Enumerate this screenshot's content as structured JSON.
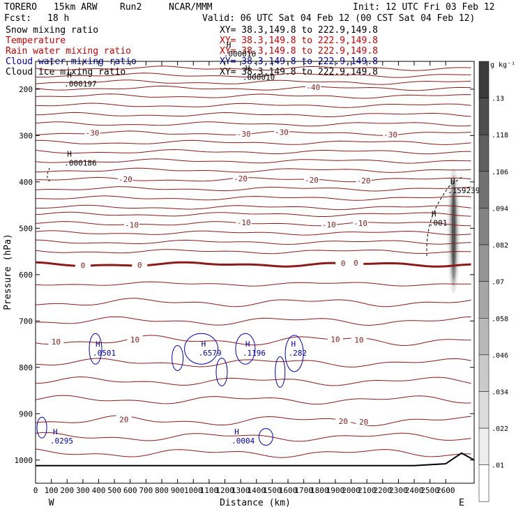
{
  "header": {
    "model": "TORERO",
    "resolution": "15km ARW",
    "run": "Run2",
    "org": "NCAR/MMM",
    "init": "Init: 12 UTC Fri 03 Feb 12",
    "fcst": "Fcst:",
    "fcst_hours": "18 h",
    "valid": "Valid: 06 UTC Sat 04 Feb 12 (00 CST Sat 04 Feb 12)"
  },
  "legend": [
    {
      "name": "Snow mixing ratio",
      "color": "#000000",
      "xy": "XY=  38.3,149.8 to 222.9,149.8"
    },
    {
      "name": "Temperature",
      "color": "#cc0000",
      "xy": "XY=  38.3,149.8 to 222.9,149.8"
    },
    {
      "name": "Rain water mixing ratio",
      "color": "#cc0000",
      "xy": "XY=  38.3,149.8 to 222.9,149.8"
    },
    {
      "name": "Cloud water mixing ratio",
      "color": "#0000aa",
      "xy": "XY=  38.3,149.8 to 222.9,149.8"
    },
    {
      "name": "Cloud ice mixing ratio",
      "color": "#000000",
      "xy": "XY=  38.3,149.8 to 222.9,149.8"
    }
  ],
  "colorbar": {
    "unit": "g kg⁻¹",
    "ticks": [
      ".13",
      ".118",
      ".106",
      ".094",
      ".082",
      ".07",
      ".058",
      ".046",
      ".034",
      ".022",
      ".01"
    ]
  },
  "chart_data": {
    "type": "contour",
    "xlabel": "Distance (km)",
    "ylabel": "Pressure (hPa)",
    "xlim": [
      0,
      2780
    ],
    "ylim": [
      140,
      1050
    ],
    "y_log_scale": false,
    "x_ticks": [
      "0",
      "100",
      "200",
      "300",
      "400",
      "500",
      "600",
      "700",
      "800",
      "900",
      "1000",
      "1100",
      "1200",
      "1300",
      "1400",
      "1500",
      "1600",
      "1700",
      "1800",
      "1900",
      "2000",
      "2100",
      "2200",
      "2300",
      "2400",
      "2500",
      "2600"
    ],
    "y_ticks": [
      "200",
      "300",
      "400",
      "500",
      "600",
      "700",
      "800",
      "900",
      "1000"
    ],
    "x_end_labels": {
      "left": "W",
      "right": "E"
    },
    "temperature_contours_C": [
      {
        "value": -40,
        "labels_at_km": [
          1760
        ]
      },
      {
        "value": -30,
        "labels_at_km": [
          360,
          1320,
          1560,
          2250
        ]
      },
      {
        "value": -20,
        "labels_at_km": [
          570,
          1300,
          1750,
          2080
        ]
      },
      {
        "value": -10,
        "labels_at_km": [
          610,
          1320,
          1860,
          2060
        ]
      },
      {
        "value": 0,
        "labels_at_km": [
          300,
          660,
          1950,
          2030
        ]
      },
      {
        "value": 10,
        "labels_at_km": [
          130,
          630,
          1900,
          2050
        ]
      },
      {
        "value": 20,
        "labels_at_km": [
          560,
          1950,
          2080
        ]
      }
    ],
    "maxima_labels": [
      {
        "text": ".000197",
        "color": "#000000",
        "x_km": 200,
        "p_hPa": 190
      },
      {
        "text": ".000010",
        "color": "#000000",
        "x_km": 1330,
        "p_hPa": 175
      },
      {
        "text": ".000016",
        "color": "#000000",
        "x_km": 1210,
        "p_hPa": 125
      },
      {
        "text": ".000186",
        "color": "#000000",
        "x_km": 200,
        "p_hPa": 360
      },
      {
        "text": ".159239",
        "color": "#000000",
        "x_km": 2630,
        "p_hPa": 420
      },
      {
        "text": ".001",
        "color": "#000000",
        "x_km": 2510,
        "p_hPa": 490
      },
      {
        "text": ".0501",
        "color": "#0000aa",
        "x_km": 380,
        "p_hPa": 770
      },
      {
        "text": ".6579",
        "color": "#0000aa",
        "x_km": 1050,
        "p_hPa": 770
      },
      {
        "text": ".1196",
        "color": "#0000aa",
        "x_km": 1330,
        "p_hPa": 770
      },
      {
        "text": ".282",
        "color": "#0000aa",
        "x_km": 1620,
        "p_hPa": 770
      },
      {
        "text": ".0295",
        "color": "#0000aa",
        "x_km": 110,
        "p_hPa": 960
      },
      {
        "text": ".0004",
        "color": "#0000aa",
        "x_km": 1260,
        "p_hPa": 960
      }
    ],
    "shaded_field": "Snow mixing ratio (g kg-1)",
    "shaded_max_at": {
      "x_km": 2650,
      "p_range_hPa": [
        430,
        580
      ],
      "value": 0.159239
    }
  }
}
